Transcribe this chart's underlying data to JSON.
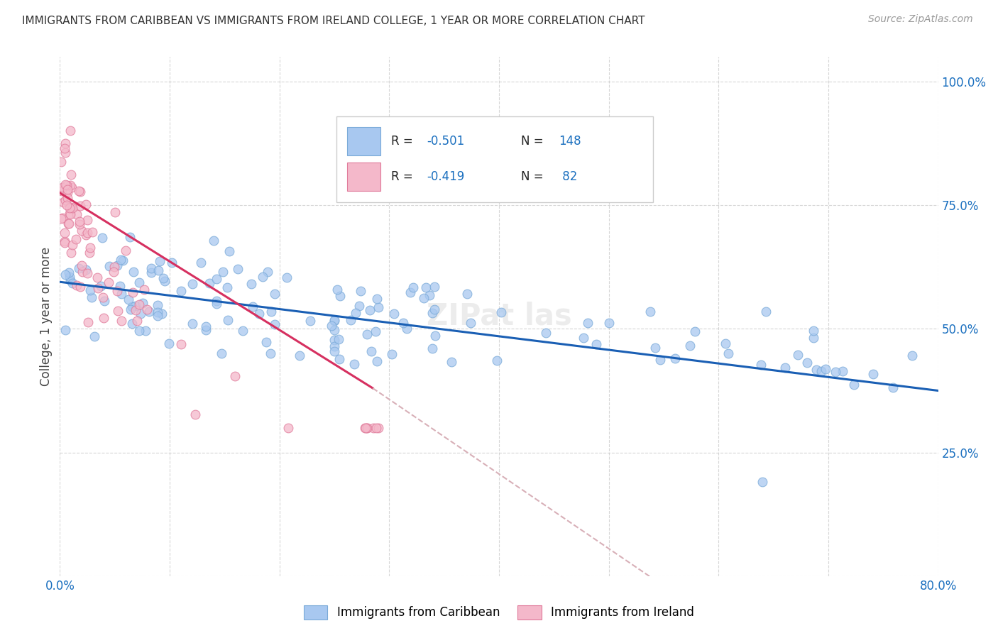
{
  "title": "IMMIGRANTS FROM CARIBBEAN VS IMMIGRANTS FROM IRELAND COLLEGE, 1 YEAR OR MORE CORRELATION CHART",
  "source": "Source: ZipAtlas.com",
  "ylabel": "College, 1 year or more",
  "xlim": [
    0.0,
    0.8
  ],
  "ylim": [
    0.0,
    1.05
  ],
  "caribbean_color": "#a8c8f0",
  "caribbean_edge": "#7aaad8",
  "ireland_color": "#f4b8ca",
  "ireland_edge": "#e07a9a",
  "trendline_caribbean_color": "#1a5fb4",
  "trendline_ireland_color": "#d63060",
  "trendline_extended_color": "#d8b0b8",
  "caribbean_color_legend": "#a8c8f0",
  "ireland_color_legend": "#f4b8ca"
}
